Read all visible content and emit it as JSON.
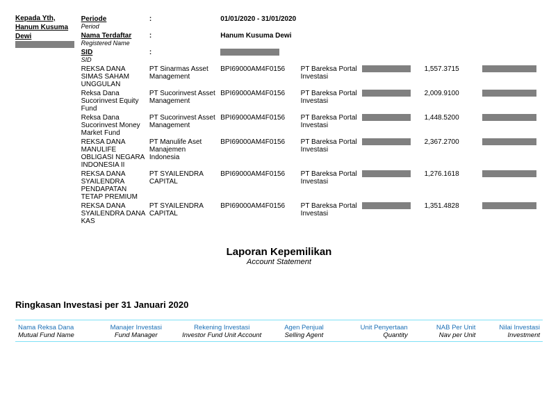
{
  "recipient": {
    "line1": "Kepada Yth,",
    "line2": "Hanum Kusuma Dewi"
  },
  "meta": {
    "periode_label": "Periode",
    "periode_sub": "Period",
    "periode_value": "01/01/2020 - 31/01/2020",
    "nama_label": "Nama Terdaftar",
    "nama_sub": "Registered Name",
    "nama_value": "Hanum Kusuma Dewi",
    "sid_label": "SID",
    "sid_sub": "SID"
  },
  "title": {
    "main": "Laporan Kepemilikan",
    "sub": "Account Statement"
  },
  "section_heading": "Ringkasan Investasi per 31 Januari 2020",
  "columns": {
    "name": {
      "h1": "Nama Reksa Dana",
      "h2": "Mutual Fund Name"
    },
    "mgr": {
      "h1": "Manajer Investasi",
      "h2": "Fund Manager"
    },
    "acct": {
      "h1": "Rekening Investasi",
      "h2": "Investor Fund Unit Account"
    },
    "agent": {
      "h1": "Agen Penjual",
      "h2": "Selling Agent"
    },
    "qty": {
      "h1": "Unit Penyertaan",
      "h2": "Quantity"
    },
    "nav": {
      "h1": "NAB Per Unit",
      "h2": "Nav per Unit"
    },
    "inv": {
      "h1": "Nilai Investasi",
      "h2": "Investment"
    }
  },
  "rows": [
    {
      "name": "REKSA DANA SIMAS SAHAM UNGGULAN",
      "mgr": "PT Sinarmas Asset Management",
      "acct": "BPI69000AM4F0156",
      "agent": "PT Bareksa Portal Investasi",
      "nav": "1,557.3715"
    },
    {
      "name": "Reksa Dana Sucorinvest Equity Fund",
      "mgr": "PT Sucorinvest Asset Management",
      "acct": "BPI69000AM4F0156",
      "agent": "PT Bareksa Portal Investasi",
      "nav": "2,009.9100"
    },
    {
      "name": "Reksa Dana Sucorinvest Money Market Fund",
      "mgr": "PT Sucorinvest Asset Management",
      "acct": "BPI69000AM4F0156",
      "agent": "PT Bareksa Portal Investasi",
      "nav": "1,448.5200"
    },
    {
      "name": "REKSA DANA MANULIFE OBLIGASI NEGARA INDONESIA II",
      "mgr": "PT Manulife Aset Manajemen Indonesia",
      "acct": "BPI69000AM4F0156",
      "agent": "PT Bareksa Portal Investasi",
      "nav": "2,367.2700"
    },
    {
      "name": "REKSA DANA SYAILENDRA PENDAPATAN TETAP PREMIUM",
      "mgr": "PT SYAILENDRA CAPITAL",
      "acct": "BPI69000AM4F0156",
      "agent": "PT Bareksa Portal Investasi",
      "nav": "1,276.1618"
    },
    {
      "name": "REKSA DANA SYAILENDRA DANA KAS",
      "mgr": "PT SYAILENDRA CAPITAL",
      "acct": "BPI69000AM4F0156",
      "agent": "PT Bareksa Portal Investasi",
      "nav": "1,351.4828"
    }
  ]
}
